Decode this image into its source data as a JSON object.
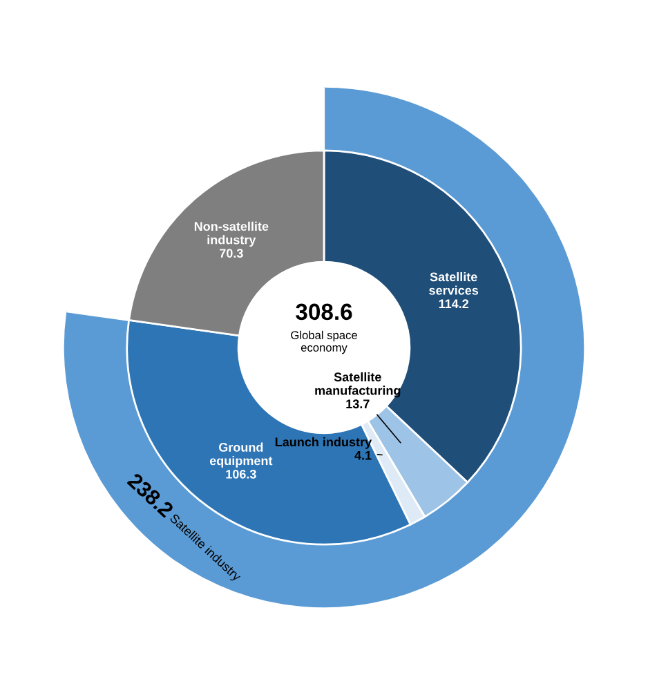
{
  "chart_data": {
    "type": "donut",
    "categories": [
      "Satellite services",
      "Satellite manufacturing",
      "Launch industry",
      "Ground equipment",
      "Non-satellite industry"
    ],
    "series": [
      {
        "values": [
          114.2,
          13.7,
          4.1,
          106.3,
          70.3
        ],
        "colors": [
          "#1f4e79",
          "#9dc3e6",
          "#deebf7",
          "#2e75b6",
          "#7f7f7f"
        ],
        "value_labels": [
          "114.2",
          "13.7",
          "4.1",
          "106.3",
          "70.3"
        ]
      },
      {
        "name": "Satellite industry",
        "values": [
          37.0,
          4.4,
          1.3,
          34.5,
          22.8
        ],
        "colors": [
          "#5b9bd5",
          "#5b9bd5",
          "#5b9bd5",
          "#5b9bd5",
          "#ffffff"
        ]
      }
    ],
    "totals": [
      "238.2"
    ],
    "annotations": [
      "308.6",
      "Global space economy"
    ],
    "legend": false
  }
}
